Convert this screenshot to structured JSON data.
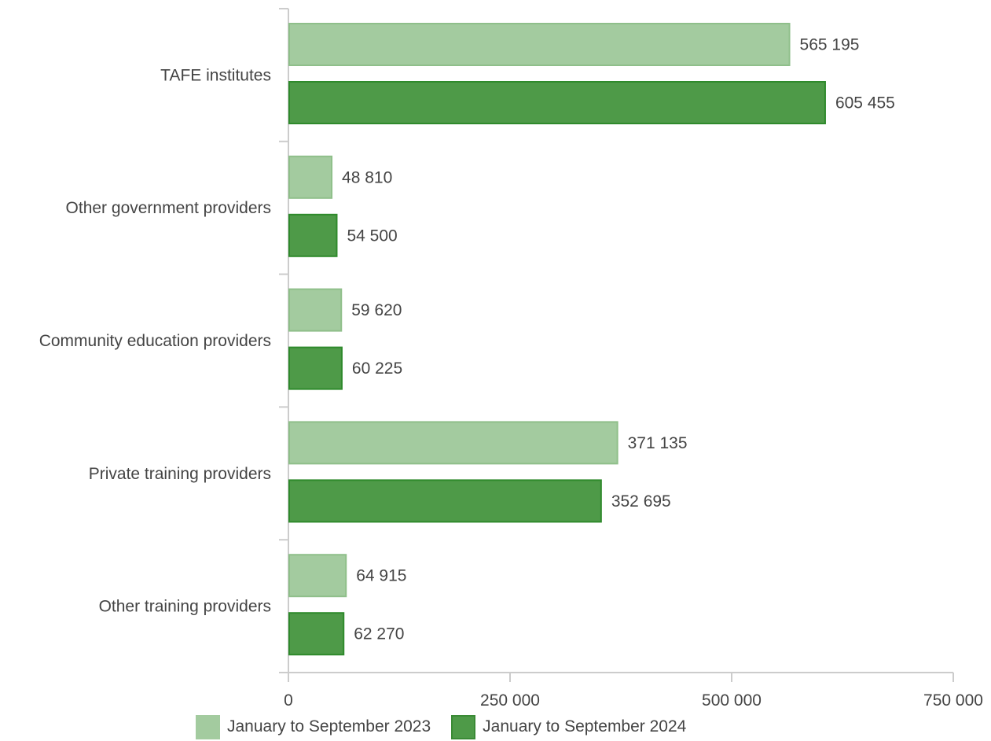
{
  "chart_data": {
    "type": "bar",
    "orientation": "horizontal",
    "categories": [
      "TAFE institutes",
      "Other government providers",
      "Community education providers",
      "Private training providers",
      "Other training providers"
    ],
    "series": [
      {
        "name": "January to September 2023",
        "values": [
          565195,
          48810,
          59620,
          371135,
          64915
        ],
        "labels": [
          "565 195",
          "48 810",
          "59 620",
          "371 135",
          "64 915"
        ],
        "color": "#a3cb9f"
      },
      {
        "name": "January to September 2024",
        "values": [
          605455,
          54500,
          60225,
          352695,
          62270
        ],
        "labels": [
          "605 455",
          "54 500",
          "60 225",
          "352 695",
          "62 270"
        ],
        "color": "#4e9a48"
      }
    ],
    "xlim": [
      0,
      750000
    ],
    "xticks": [
      0,
      250000,
      500000,
      750000
    ],
    "xtick_labels": [
      "0",
      "250 000",
      "500 000",
      "750 000"
    ],
    "grid": false,
    "legend_position": "bottom"
  },
  "legend": {
    "items": [
      {
        "label": "January to September 2023",
        "color": "#a3cb9f",
        "border": "#8fbf8a"
      },
      {
        "label": "January to September 2024",
        "color": "#4e9a48",
        "border": "#3a8a35"
      }
    ]
  }
}
